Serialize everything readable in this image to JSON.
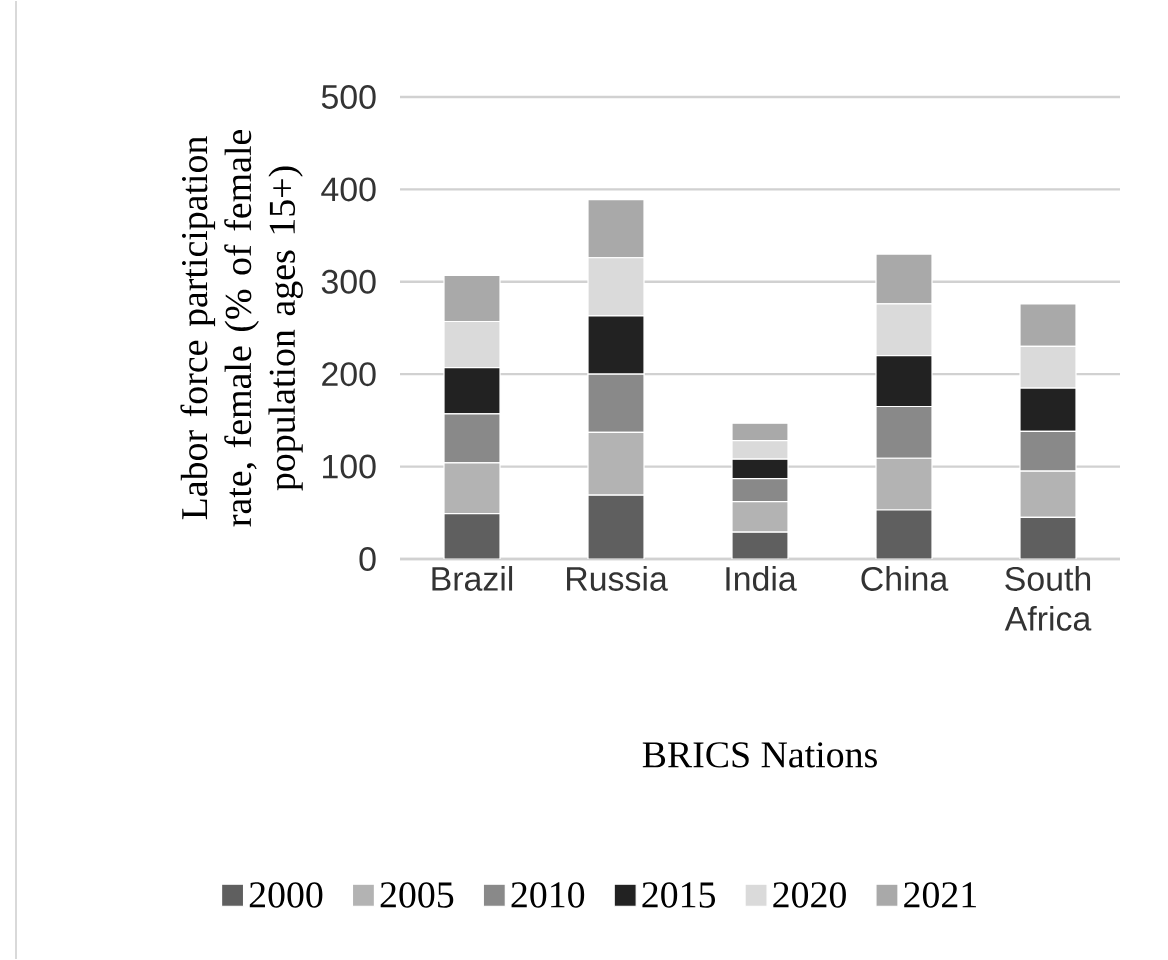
{
  "chart_data": {
    "type": "bar",
    "stacked": true,
    "xlabel": "BRICS Nations",
    "ylabel": "Labor force participation rate, female (% of female population ages 15+)",
    "categories": [
      "Brazil",
      "Russia",
      "India",
      "China",
      "South Africa"
    ],
    "series": [
      {
        "name": "2000",
        "color": "#5f5f5f",
        "values": [
          49,
          69,
          29,
          53,
          45
        ]
      },
      {
        "name": "2005",
        "color": "#b3b3b3",
        "values": [
          55,
          68,
          33,
          56,
          50
        ]
      },
      {
        "name": "2010",
        "color": "#898989",
        "values": [
          53,
          63,
          25,
          56,
          43
        ]
      },
      {
        "name": "2015",
        "color": "#222222",
        "values": [
          50,
          63,
          21,
          55,
          47
        ]
      },
      {
        "name": "2020",
        "color": "#dadada",
        "values": [
          50,
          63,
          20,
          56,
          45
        ]
      },
      {
        "name": "2021",
        "color": "#a9a9a9",
        "values": [
          50,
          63,
          19,
          54,
          46
        ]
      }
    ],
    "ylim": [
      0,
      500
    ],
    "yticks": [
      0,
      100,
      200,
      300,
      400,
      500
    ],
    "grid": "y",
    "legend": "bottom"
  }
}
